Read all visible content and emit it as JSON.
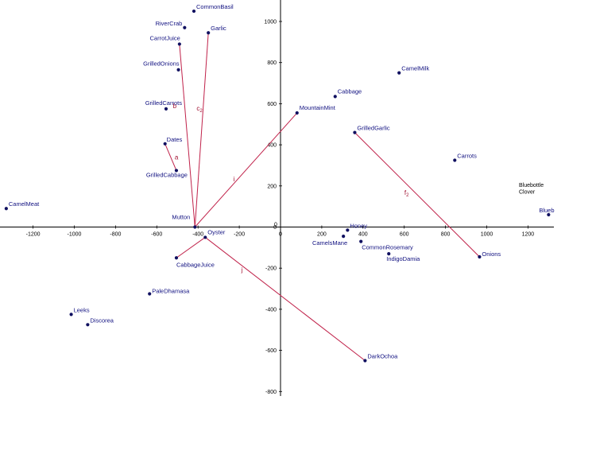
{
  "chart_data": {
    "type": "scatter",
    "title": "",
    "xlabel": "",
    "ylabel": "",
    "xlim": [
      -1370,
      1330
    ],
    "ylim": [
      -830,
      1090
    ],
    "grid": false,
    "x_ticks": [
      -1200,
      -1000,
      -800,
      -600,
      -400,
      -200,
      0,
      200,
      400,
      600,
      800,
      1000,
      1200
    ],
    "y_ticks": [
      -800,
      -600,
      -400,
      -200,
      0,
      200,
      400,
      600,
      800,
      1000
    ],
    "points": [
      {
        "name": "CommonBasil",
        "x": -420,
        "y": 1050
      },
      {
        "name": "RiverCrab",
        "x": -465,
        "y": 970
      },
      {
        "name": "Garlic",
        "x": -350,
        "y": 945
      },
      {
        "name": "CarrotJuice",
        "x": -490,
        "y": 890
      },
      {
        "name": "GrilledOnions",
        "x": -495,
        "y": 765
      },
      {
        "name": "GrilledCarrots",
        "x": -555,
        "y": 575
      },
      {
        "name": "Dates",
        "x": -560,
        "y": 405
      },
      {
        "name": "GrilledCabbage",
        "x": -505,
        "y": 275
      },
      {
        "name": "CamelMeat",
        "x": -1330,
        "y": 90
      },
      {
        "name": "Mutton",
        "x": -415,
        "y": 0
      },
      {
        "name": "Oyster",
        "x": -365,
        "y": -50
      },
      {
        "name": "CabbageJuice",
        "x": -505,
        "y": -150
      },
      {
        "name": "PaleDhamasa",
        "x": -635,
        "y": -325
      },
      {
        "name": "Leeks",
        "x": -1015,
        "y": -425
      },
      {
        "name": "Discorea",
        "x": -935,
        "y": -475
      },
      {
        "name": "MountainMint",
        "x": 80,
        "y": 555
      },
      {
        "name": "Cabbage",
        "x": 265,
        "y": 635
      },
      {
        "name": "CamelMilk",
        "x": 575,
        "y": 750
      },
      {
        "name": "GrilledGarlic",
        "x": 360,
        "y": 460
      },
      {
        "name": "Carrots",
        "x": 845,
        "y": 325
      },
      {
        "name": "Honey",
        "x": 325,
        "y": -15
      },
      {
        "name": "CamelsMane",
        "x": 305,
        "y": -45
      },
      {
        "name": "CommonRosemary",
        "x": 390,
        "y": -70
      },
      {
        "name": "IndigoDamia",
        "x": 525,
        "y": -130
      },
      {
        "name": "Onions",
        "x": 965,
        "y": -145
      },
      {
        "name": "DarkOchoa",
        "x": 410,
        "y": -650
      },
      {
        "name": "Blueb",
        "x": 1300,
        "y": 60
      }
    ],
    "segments": [
      {
        "name": "a",
        "from": "Dates",
        "to": "GrilledCabbage"
      },
      {
        "name": "b",
        "from": "CarrotJuice",
        "to": "Mutton"
      },
      {
        "name": "c2",
        "from": "Garlic",
        "to": "Mutton"
      },
      {
        "name": "i",
        "from": "Mutton",
        "to": "MountainMint"
      },
      {
        "name": "",
        "from": "Oyster",
        "to": "CabbageJuice"
      },
      {
        "name": "j",
        "from": "Oyster",
        "to": "DarkOchoa"
      },
      {
        "name": "f2",
        "from": "GrilledGarlic",
        "to": "Onions"
      }
    ],
    "annotations": [
      "Bluebottle",
      "Clover"
    ]
  }
}
